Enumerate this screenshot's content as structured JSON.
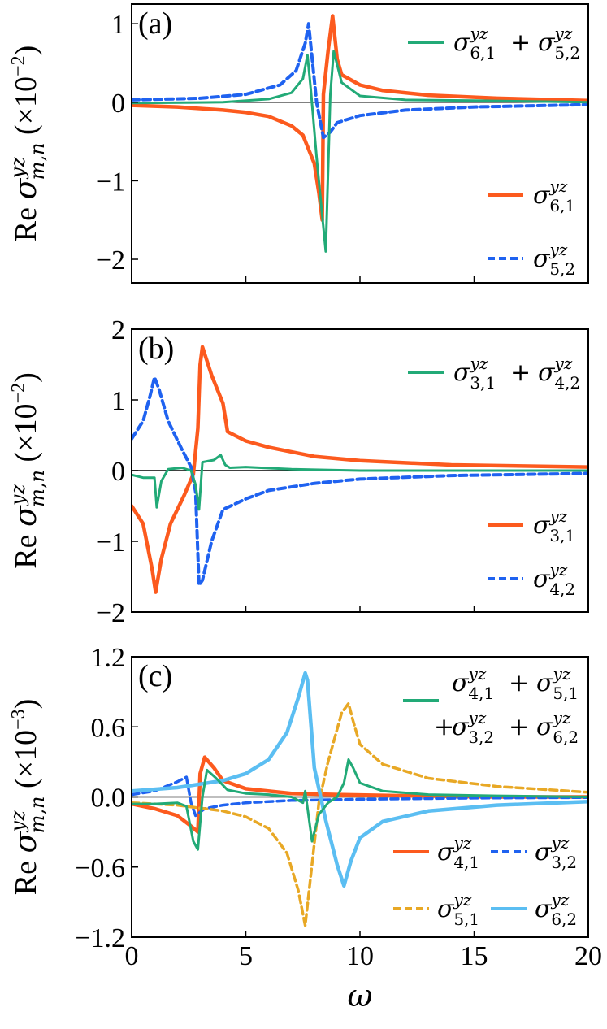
{
  "colors": {
    "orange": "#fc5a1e",
    "blue": "#1f62f0",
    "green": "#22aa77",
    "gold": "#e8a825",
    "sky": "#5bbef2"
  },
  "figure": {
    "xlabel": "ω",
    "xlim": [
      0,
      20
    ],
    "x_ticks": [
      "0",
      "5",
      "10",
      "15",
      "20"
    ]
  },
  "chart_data": [
    {
      "panel": "(a)",
      "type": "line",
      "ylabel": "Re σ^{yz}_{m,n} (×10^{−2})",
      "ylim": [
        -2.3,
        1.25
      ],
      "y_ticks": [
        {
          "v": 1,
          "label": "1"
        },
        {
          "v": 0,
          "label": "0"
        },
        {
          "v": -1,
          "label": "−1"
        },
        {
          "v": -2,
          "label": "−2"
        }
      ],
      "series": [
        {
          "name": "σ^{yz}_{6,1}",
          "color_key": "orange",
          "dash": "solid",
          "width": 4.5,
          "x": [
            0,
            2,
            4,
            5,
            6,
            7,
            7.5,
            8.0,
            8.2,
            8.35,
            8.4,
            8.6,
            8.8,
            9.0,
            9.2,
            10,
            11,
            13,
            16,
            20
          ],
          "y": [
            -0.04,
            -0.06,
            -0.1,
            -0.13,
            -0.18,
            -0.3,
            -0.42,
            -0.78,
            -1.15,
            -1.5,
            0.1,
            0.65,
            1.1,
            0.55,
            0.35,
            0.22,
            0.15,
            0.09,
            0.05,
            0.02
          ]
        },
        {
          "name": "σ^{yz}_{5,2}",
          "color_key": "blue",
          "dash": "dashed",
          "width": 4,
          "x": [
            0,
            3,
            5,
            6.5,
            7.2,
            7.6,
            7.75,
            8.1,
            8.4,
            8.7,
            9.0,
            10,
            12,
            15,
            20
          ],
          "y": [
            0.03,
            0.05,
            0.1,
            0.22,
            0.4,
            0.75,
            1.0,
            0.0,
            -0.45,
            -0.38,
            -0.26,
            -0.17,
            -0.1,
            -0.06,
            -0.03
          ]
        },
        {
          "name": "σ^{yz}_{6,1} + σ^{yz}_{5,2}",
          "color_key": "green",
          "dash": "solid",
          "width": 3,
          "x": [
            0,
            4,
            6,
            7,
            7.5,
            7.7,
            7.85,
            8.1,
            8.3,
            8.5,
            8.7,
            8.85,
            9.2,
            10,
            12,
            15,
            20
          ],
          "y": [
            -0.01,
            0.0,
            0.04,
            0.12,
            0.3,
            0.6,
            0.15,
            -0.7,
            -1.3,
            -1.9,
            0.1,
            0.65,
            0.25,
            0.08,
            0.03,
            0.02,
            0.0
          ]
        }
      ]
    },
    {
      "panel": "(b)",
      "type": "line",
      "ylabel": "Re σ^{yz}_{m,n} (×10^{−2})",
      "ylim": [
        -2,
        2
      ],
      "y_ticks": [
        {
          "v": 2,
          "label": "2"
        },
        {
          "v": 1,
          "label": "1"
        },
        {
          "v": 0,
          "label": "0"
        },
        {
          "v": -1,
          "label": "−1"
        },
        {
          "v": -2,
          "label": "−2"
        }
      ],
      "series": [
        {
          "name": "σ^{yz}_{3,1}",
          "color_key": "orange",
          "dash": "solid",
          "width": 4.5,
          "x": [
            0,
            0.5,
            0.9,
            1.05,
            1.3,
            1.7,
            2.3,
            2.7,
            2.9,
            3.0,
            3.1,
            3.5,
            4.0,
            4.2,
            5,
            6,
            8,
            10,
            14,
            20
          ],
          "y": [
            -0.5,
            -0.75,
            -1.4,
            -1.72,
            -1.25,
            -0.75,
            -0.35,
            -0.05,
            0.6,
            1.5,
            1.75,
            1.35,
            0.95,
            0.55,
            0.42,
            0.33,
            0.2,
            0.14,
            0.08,
            0.05
          ]
        },
        {
          "name": "σ^{yz}_{4,2}",
          "color_key": "blue",
          "dash": "dashed",
          "width": 4,
          "x": [
            0,
            0.5,
            0.8,
            1.0,
            1.2,
            1.6,
            2.2,
            2.6,
            2.8,
            2.95,
            3.1,
            3.5,
            4.0,
            5,
            6,
            8,
            10,
            14,
            20
          ],
          "y": [
            0.45,
            0.7,
            1.05,
            1.32,
            1.15,
            0.7,
            0.3,
            0.05,
            -0.3,
            -1.62,
            -1.55,
            -1.0,
            -0.55,
            -0.4,
            -0.28,
            -0.18,
            -0.12,
            -0.07,
            -0.04
          ]
        },
        {
          "name": "σ^{yz}_{3,1} + σ^{yz}_{4,2}",
          "color_key": "green",
          "dash": "solid",
          "width": 3,
          "x": [
            0,
            0.5,
            1.0,
            1.1,
            1.3,
            1.6,
            2.2,
            2.6,
            2.8,
            2.95,
            3.1,
            3.6,
            3.9,
            4.1,
            4.3,
            5,
            7,
            10,
            15,
            20
          ],
          "y": [
            -0.06,
            -0.1,
            -0.1,
            -0.52,
            -0.15,
            0.02,
            0.04,
            0.0,
            -0.2,
            -0.55,
            0.12,
            0.15,
            0.22,
            0.08,
            0.04,
            0.05,
            0.02,
            0.0,
            0.0,
            0.0
          ]
        }
      ]
    },
    {
      "panel": "(c)",
      "type": "line",
      "ylabel": "Re σ^{yz}_{m,n} (×10^{−3})",
      "ylim": [
        -1.2,
        1.2
      ],
      "y_ticks": [
        {
          "v": 1.2,
          "label": "1.2"
        },
        {
          "v": 0.6,
          "label": "0.6"
        },
        {
          "v": 0,
          "label": "0.0"
        },
        {
          "v": -0.6,
          "label": "−0.6"
        },
        {
          "v": -1.2,
          "label": "−1.2"
        }
      ],
      "series": [
        {
          "name": "σ^{yz}_{4,1}",
          "color_key": "orange",
          "dash": "solid",
          "width": 4.5,
          "x": [
            0,
            1,
            2,
            2.6,
            2.9,
            3.0,
            3.2,
            3.6,
            4.0,
            5,
            7,
            9,
            12,
            16,
            20
          ],
          "y": [
            -0.06,
            -0.1,
            -0.16,
            -0.25,
            -0.3,
            0.2,
            0.34,
            0.25,
            0.14,
            0.07,
            0.03,
            0.02,
            0.01,
            0.0,
            0.0
          ]
        },
        {
          "name": "σ^{yz}_{3,2}",
          "color_key": "blue",
          "dash": "dashed",
          "width": 3.5,
          "x": [
            0,
            1,
            2.0,
            2.4,
            2.6,
            2.8,
            3.2,
            4,
            5,
            7,
            10,
            15,
            20
          ],
          "y": [
            0.02,
            0.05,
            0.13,
            0.17,
            -0.05,
            -0.16,
            -0.1,
            -0.07,
            -0.05,
            -0.03,
            -0.02,
            -0.01,
            -0.005
          ]
        },
        {
          "name": "σ^{yz}_{5,1}",
          "color_key": "gold",
          "dash": "dashed",
          "width": 3.5,
          "x": [
            0,
            2,
            4,
            5,
            6,
            6.8,
            7.3,
            7.6,
            7.8,
            8.2,
            8.6,
            9.2,
            9.5,
            9.7,
            10,
            11,
            13,
            16,
            20
          ],
          "y": [
            -0.05,
            -0.07,
            -0.12,
            -0.17,
            -0.27,
            -0.48,
            -0.8,
            -1.1,
            -0.75,
            -0.05,
            0.3,
            0.72,
            0.8,
            0.65,
            0.45,
            0.28,
            0.16,
            0.09,
            0.04
          ]
        },
        {
          "name": "σ^{yz}_{6,2}",
          "color_key": "sky",
          "dash": "solid",
          "width": 4.5,
          "x": [
            0,
            2,
            4,
            5,
            6,
            6.8,
            7.3,
            7.6,
            7.7,
            8.0,
            8.5,
            9.0,
            9.3,
            9.6,
            10,
            11,
            13,
            16,
            20
          ],
          "y": [
            0.05,
            0.08,
            0.14,
            0.2,
            0.32,
            0.55,
            0.85,
            1.06,
            1.0,
            0.25,
            -0.2,
            -0.58,
            -0.76,
            -0.55,
            -0.35,
            -0.21,
            -0.12,
            -0.07,
            -0.04
          ]
        },
        {
          "name": "σ^{yz}_{4,1} + σ^{yz}_{5,1} + σ^{yz}_{3,2} + σ^{yz}_{6,2}",
          "color_key": "green",
          "dash": "solid",
          "width": 3,
          "x": [
            0,
            1,
            2,
            2.4,
            2.7,
            2.9,
            3.1,
            3.3,
            3.7,
            4.2,
            5,
            6,
            7,
            7.5,
            7.6,
            7.9,
            8.2,
            8.6,
            9.0,
            9.3,
            9.5,
            9.7,
            10,
            11,
            13,
            16,
            20
          ],
          "y": [
            -0.06,
            -0.06,
            -0.05,
            -0.08,
            -0.38,
            -0.45,
            0.0,
            0.23,
            0.16,
            0.06,
            0.03,
            0.02,
            0.0,
            -0.05,
            0.05,
            -0.38,
            -0.15,
            -0.05,
            0.0,
            0.12,
            0.32,
            0.25,
            0.12,
            0.05,
            0.02,
            0.01,
            0.0
          ]
        }
      ]
    }
  ],
  "legends": {
    "a": [
      {
        "base": "σ",
        "sup": "yz",
        "sub": "6,1",
        "plus": true,
        "base2": "σ",
        "sup2": "yz",
        "sub2": "5,2",
        "color_key": "green"
      },
      {
        "base": "σ",
        "sup": "yz",
        "sub": "6,1",
        "color_key": "orange"
      },
      {
        "base": "σ",
        "sup": "yz",
        "sub": "5,2",
        "color_key": "blue"
      }
    ],
    "b": [
      {
        "base": "σ",
        "sup": "yz",
        "sub": "3,1",
        "plus": true,
        "base2": "σ",
        "sup2": "yz",
        "sub2": "4,2",
        "color_key": "green"
      },
      {
        "base": "σ",
        "sup": "yz",
        "sub": "3,1",
        "color_key": "orange"
      },
      {
        "base": "σ",
        "sup": "yz",
        "sub": "4,2",
        "color_key": "blue"
      }
    ],
    "c_sum_line1": {
      "base": "σ",
      "sup": "yz",
      "sub": "4,1",
      "base2": "σ",
      "sup2": "yz",
      "sub2": "5,1"
    },
    "c_sum_line2": {
      "base": "σ",
      "sup": "yz",
      "sub": "3,2",
      "base2": "σ",
      "sup2": "yz",
      "sub2": "6,2"
    },
    "c_grid": [
      {
        "sub": "4,1",
        "color_key": "orange"
      },
      {
        "sub": "3,2",
        "color_key": "blue"
      },
      {
        "sub": "5,1",
        "color_key": "gold"
      },
      {
        "sub": "6,2",
        "color_key": "sky"
      }
    ],
    "sym": "σ",
    "sup": "yz",
    "plus_sign": "+"
  },
  "ylabel_parts": {
    "re": "Re",
    "sigma": "σ",
    "sup": "yz",
    "sub": "m,n",
    "times": "(×10",
    "exp_a": "−2",
    "exp_c": "−3",
    "close": ")"
  }
}
